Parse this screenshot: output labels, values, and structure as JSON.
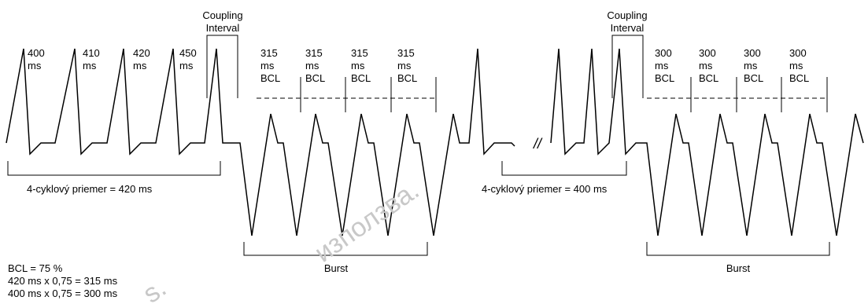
{
  "left": {
    "coupling_label": [
      "Coupling",
      "Interval"
    ],
    "cycle_labels": [
      [
        "400",
        "ms"
      ],
      [
        "410",
        "ms"
      ],
      [
        "420",
        "ms"
      ],
      [
        "450",
        "ms"
      ]
    ],
    "burst_cycle_labels": [
      [
        "315",
        "ms",
        "BCL"
      ],
      [
        "315",
        "ms",
        "BCL"
      ],
      [
        "315",
        "ms",
        "BCL"
      ],
      [
        "315",
        "ms",
        "BCL"
      ]
    ],
    "average_label": "4-cyklový priemer = 420 ms",
    "burst_label": "Burst"
  },
  "right": {
    "coupling_label": [
      "Coupling",
      "Interval"
    ],
    "burst_cycle_labels": [
      [
        "300",
        "ms",
        "BCL"
      ],
      [
        "300",
        "ms",
        "BCL"
      ],
      [
        "300",
        "ms",
        "BCL"
      ],
      [
        "300",
        "ms",
        "BCL"
      ]
    ],
    "average_label": "4-cyklový priemer = 400 ms",
    "burst_label": "Burst"
  },
  "formula_lines": [
    "BCL = 75 %",
    "420 ms x 0,75 = 315 ms",
    "400 ms x 0,75 = 300 ms"
  ],
  "break_mark": "//",
  "watermark_text": [
    "използва.",
    "s."
  ]
}
